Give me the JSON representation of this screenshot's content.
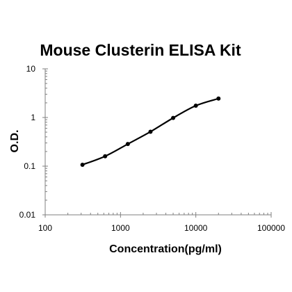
{
  "chart_data": {
    "type": "line",
    "title": "Mouse Clusterin ELISA Kit",
    "xlabel": "Concentration(pg/ml)",
    "ylabel": "O.D.",
    "xscale": "log",
    "yscale": "log",
    "xlim": [
      100,
      100000
    ],
    "ylim": [
      0.01,
      10
    ],
    "xticks": [
      "100",
      "1000",
      "10000",
      "100000"
    ],
    "yticks": [
      "0.01",
      "0.1",
      "1",
      "10"
    ],
    "grid": false,
    "legend": "none",
    "series": [
      {
        "color": "#000000",
        "x": [
          312.5,
          625,
          1250,
          2500,
          5000,
          10000,
          20000
        ],
        "y": [
          0.107,
          0.16,
          0.285,
          0.51,
          0.98,
          1.75,
          2.45
        ]
      }
    ]
  }
}
